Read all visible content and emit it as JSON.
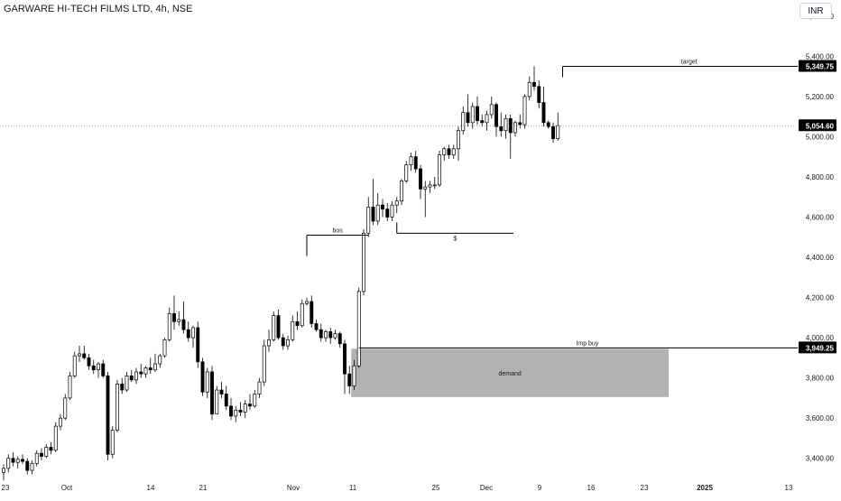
{
  "header": {
    "symbol_title": "GARWARE HI-TECH FILMS LTD, 4h, NSE",
    "currency": "INR"
  },
  "chart_data": {
    "type": "candlestick",
    "title": "GARWARE HI-TECH FILMS LTD, 4h, NSE",
    "currency": "INR",
    "y_axis": {
      "ticks": [
        3400,
        3600,
        3800,
        4000,
        4200,
        4400,
        4600,
        4800,
        5000,
        5200,
        5400,
        5600
      ],
      "tick_labels": [
        "3,400.00",
        "3,600.00",
        "3,800.00",
        "4,000.00",
        "4,200.00",
        "4,400.00",
        "4,600.00",
        "4,800.00",
        "5,000.00",
        "5,200.00",
        "5,400.00",
        "5,600.00"
      ],
      "range": [
        3300,
        5680
      ]
    },
    "x_axis": {
      "tick_labels": [
        "23",
        "Oct",
        "14",
        "21",
        "Nov",
        "11",
        "25",
        "Dec",
        "9",
        "16",
        "23",
        "2025",
        "13"
      ],
      "tick_bold": [
        false,
        false,
        false,
        false,
        false,
        false,
        false,
        false,
        false,
        false,
        false,
        true,
        false
      ]
    },
    "last_price": {
      "value": 5054.6,
      "label": "5,054.60"
    },
    "candles": [
      {
        "o": 3330,
        "h": 3370,
        "l": 3290,
        "c": 3350
      },
      {
        "o": 3350,
        "h": 3420,
        "l": 3330,
        "c": 3400
      },
      {
        "o": 3400,
        "h": 3430,
        "l": 3360,
        "c": 3380
      },
      {
        "o": 3380,
        "h": 3410,
        "l": 3350,
        "c": 3395
      },
      {
        "o": 3395,
        "h": 3420,
        "l": 3370,
        "c": 3385
      },
      {
        "o": 3385,
        "h": 3400,
        "l": 3320,
        "c": 3340
      },
      {
        "o": 3340,
        "h": 3390,
        "l": 3320,
        "c": 3375
      },
      {
        "o": 3375,
        "h": 3440,
        "l": 3360,
        "c": 3425
      },
      {
        "o": 3425,
        "h": 3450,
        "l": 3390,
        "c": 3410
      },
      {
        "o": 3410,
        "h": 3470,
        "l": 3400,
        "c": 3455
      },
      {
        "o": 3455,
        "h": 3480,
        "l": 3420,
        "c": 3440
      },
      {
        "o": 3440,
        "h": 3580,
        "l": 3430,
        "c": 3560
      },
      {
        "o": 3560,
        "h": 3620,
        "l": 3540,
        "c": 3600
      },
      {
        "o": 3600,
        "h": 3720,
        "l": 3590,
        "c": 3700
      },
      {
        "o": 3700,
        "h": 3830,
        "l": 3690,
        "c": 3810
      },
      {
        "o": 3810,
        "h": 3930,
        "l": 3800,
        "c": 3910
      },
      {
        "o": 3910,
        "h": 3960,
        "l": 3880,
        "c": 3920
      },
      {
        "o": 3920,
        "h": 3960,
        "l": 3890,
        "c": 3900
      },
      {
        "o": 3900,
        "h": 3920,
        "l": 3840,
        "c": 3860
      },
      {
        "o": 3860,
        "h": 3890,
        "l": 3820,
        "c": 3840
      },
      {
        "o": 3840,
        "h": 3880,
        "l": 3800,
        "c": 3870
      },
      {
        "o": 3870,
        "h": 3890,
        "l": 3800,
        "c": 3810
      },
      {
        "o": 3810,
        "h": 3830,
        "l": 3390,
        "c": 3420
      },
      {
        "o": 3420,
        "h": 3560,
        "l": 3400,
        "c": 3540
      },
      {
        "o": 3540,
        "h": 3790,
        "l": 3530,
        "c": 3770
      },
      {
        "o": 3770,
        "h": 3800,
        "l": 3720,
        "c": 3740
      },
      {
        "o": 3740,
        "h": 3830,
        "l": 3730,
        "c": 3810
      },
      {
        "o": 3810,
        "h": 3840,
        "l": 3780,
        "c": 3790
      },
      {
        "o": 3790,
        "h": 3850,
        "l": 3770,
        "c": 3830
      },
      {
        "o": 3830,
        "h": 3870,
        "l": 3800,
        "c": 3820
      },
      {
        "o": 3820,
        "h": 3860,
        "l": 3800,
        "c": 3850
      },
      {
        "o": 3850,
        "h": 3900,
        "l": 3820,
        "c": 3840
      },
      {
        "o": 3840,
        "h": 3920,
        "l": 3830,
        "c": 3870
      },
      {
        "o": 3870,
        "h": 3920,
        "l": 3850,
        "c": 3910
      },
      {
        "o": 3910,
        "h": 4000,
        "l": 3900,
        "c": 3990
      },
      {
        "o": 3990,
        "h": 4150,
        "l": 3980,
        "c": 4120
      },
      {
        "o": 4120,
        "h": 4210,
        "l": 4040,
        "c": 4080
      },
      {
        "o": 4080,
        "h": 4130,
        "l": 4060,
        "c": 4090
      },
      {
        "o": 4090,
        "h": 4180,
        "l": 4020,
        "c": 4040
      },
      {
        "o": 4040,
        "h": 4080,
        "l": 3980,
        "c": 4000
      },
      {
        "o": 4000,
        "h": 4060,
        "l": 3950,
        "c": 4050
      },
      {
        "o": 4050,
        "h": 4080,
        "l": 3850,
        "c": 3880
      },
      {
        "o": 3880,
        "h": 3900,
        "l": 3710,
        "c": 3730
      },
      {
        "o": 3730,
        "h": 3850,
        "l": 3700,
        "c": 3830
      },
      {
        "o": 3830,
        "h": 3860,
        "l": 3590,
        "c": 3620
      },
      {
        "o": 3620,
        "h": 3760,
        "l": 3620,
        "c": 3740
      },
      {
        "o": 3740,
        "h": 3780,
        "l": 3700,
        "c": 3720
      },
      {
        "o": 3720,
        "h": 3760,
        "l": 3640,
        "c": 3660
      },
      {
        "o": 3660,
        "h": 3700,
        "l": 3590,
        "c": 3610
      },
      {
        "o": 3610,
        "h": 3660,
        "l": 3580,
        "c": 3640
      },
      {
        "o": 3640,
        "h": 3680,
        "l": 3610,
        "c": 3630
      },
      {
        "o": 3630,
        "h": 3690,
        "l": 3600,
        "c": 3670
      },
      {
        "o": 3670,
        "h": 3720,
        "l": 3640,
        "c": 3660
      },
      {
        "o": 3660,
        "h": 3740,
        "l": 3650,
        "c": 3720
      },
      {
        "o": 3720,
        "h": 3800,
        "l": 3700,
        "c": 3780
      },
      {
        "o": 3780,
        "h": 3990,
        "l": 3760,
        "c": 3960
      },
      {
        "o": 3960,
        "h": 4040,
        "l": 3930,
        "c": 3990
      },
      {
        "o": 3990,
        "h": 4130,
        "l": 3980,
        "c": 4110
      },
      {
        "o": 4110,
        "h": 4140,
        "l": 3990,
        "c": 4000
      },
      {
        "o": 4000,
        "h": 4020,
        "l": 3940,
        "c": 3960
      },
      {
        "o": 3960,
        "h": 4010,
        "l": 3940,
        "c": 3990
      },
      {
        "o": 3990,
        "h": 4110,
        "l": 3980,
        "c": 4080
      },
      {
        "o": 4080,
        "h": 4130,
        "l": 4040,
        "c": 4060
      },
      {
        "o": 4060,
        "h": 4190,
        "l": 4050,
        "c": 4170
      },
      {
        "o": 4170,
        "h": 4200,
        "l": 4160,
        "c": 4180
      },
      {
        "o": 4180,
        "h": 4210,
        "l": 4050,
        "c": 4070
      },
      {
        "o": 4070,
        "h": 4090,
        "l": 4030,
        "c": 4040
      },
      {
        "o": 4040,
        "h": 4070,
        "l": 3980,
        "c": 4000
      },
      {
        "o": 4000,
        "h": 4040,
        "l": 3980,
        "c": 4030
      },
      {
        "o": 4030,
        "h": 4050,
        "l": 3970,
        "c": 4000
      },
      {
        "o": 4000,
        "h": 4040,
        "l": 3990,
        "c": 4020
      },
      {
        "o": 4020,
        "h": 4030,
        "l": 3950,
        "c": 3970
      },
      {
        "o": 3970,
        "h": 3990,
        "l": 3720,
        "c": 3820
      },
      {
        "o": 3820,
        "h": 3860,
        "l": 3720,
        "c": 3760
      },
      {
        "o": 3760,
        "h": 3890,
        "l": 3740,
        "c": 3860
      },
      {
        "o": 3860,
        "h": 4250,
        "l": 3850,
        "c": 4230
      },
      {
        "o": 4230,
        "h": 4540,
        "l": 4210,
        "c": 4520
      },
      {
        "o": 4520,
        "h": 4700,
        "l": 4500,
        "c": 4650
      },
      {
        "o": 4650,
        "h": 4790,
        "l": 4560,
        "c": 4580
      },
      {
        "o": 4580,
        "h": 4720,
        "l": 4560,
        "c": 4660
      },
      {
        "o": 4660,
        "h": 4690,
        "l": 4600,
        "c": 4640
      },
      {
        "o": 4640,
        "h": 4670,
        "l": 4580,
        "c": 4600
      },
      {
        "o": 4600,
        "h": 4680,
        "l": 4580,
        "c": 4660
      },
      {
        "o": 4660,
        "h": 4700,
        "l": 4620,
        "c": 4680
      },
      {
        "o": 4680,
        "h": 4790,
        "l": 4660,
        "c": 4780
      },
      {
        "o": 4780,
        "h": 4880,
        "l": 4770,
        "c": 4860
      },
      {
        "o": 4860,
        "h": 4920,
        "l": 4830,
        "c": 4900
      },
      {
        "o": 4900,
        "h": 4930,
        "l": 4820,
        "c": 4840
      },
      {
        "o": 4840,
        "h": 4860,
        "l": 4690,
        "c": 4740
      },
      {
        "o": 4740,
        "h": 4780,
        "l": 4600,
        "c": 4750
      },
      {
        "o": 4750,
        "h": 4780,
        "l": 4720,
        "c": 4760
      },
      {
        "o": 4760,
        "h": 4800,
        "l": 4740,
        "c": 4760
      },
      {
        "o": 4760,
        "h": 4930,
        "l": 4750,
        "c": 4910
      },
      {
        "o": 4910,
        "h": 4950,
        "l": 4880,
        "c": 4940
      },
      {
        "o": 4940,
        "h": 4960,
        "l": 4890,
        "c": 4910
      },
      {
        "o": 4910,
        "h": 4960,
        "l": 4890,
        "c": 4940
      },
      {
        "o": 4940,
        "h": 5050,
        "l": 4880,
        "c": 5030
      },
      {
        "o": 5030,
        "h": 5150,
        "l": 5010,
        "c": 5120
      },
      {
        "o": 5120,
        "h": 5210,
        "l": 5050,
        "c": 5070
      },
      {
        "o": 5070,
        "h": 5170,
        "l": 5040,
        "c": 5150
      },
      {
        "o": 5150,
        "h": 5200,
        "l": 5060,
        "c": 5080
      },
      {
        "o": 5080,
        "h": 5110,
        "l": 5050,
        "c": 5070
      },
      {
        "o": 5070,
        "h": 5130,
        "l": 5030,
        "c": 5110
      },
      {
        "o": 5110,
        "h": 5200,
        "l": 5090,
        "c": 5160
      },
      {
        "o": 5160,
        "h": 5170,
        "l": 5000,
        "c": 5050
      },
      {
        "o": 5050,
        "h": 5120,
        "l": 5000,
        "c": 5030
      },
      {
        "o": 5030,
        "h": 5110,
        "l": 4990,
        "c": 5090
      },
      {
        "o": 5090,
        "h": 5110,
        "l": 4890,
        "c": 5020
      },
      {
        "o": 5020,
        "h": 5080,
        "l": 5000,
        "c": 5070
      },
      {
        "o": 5070,
        "h": 5110,
        "l": 5040,
        "c": 5060
      },
      {
        "o": 5060,
        "h": 5210,
        "l": 5040,
        "c": 5200
      },
      {
        "o": 5200,
        "h": 5300,
        "l": 5180,
        "c": 5270
      },
      {
        "o": 5270,
        "h": 5350,
        "l": 5230,
        "c": 5250
      },
      {
        "o": 5250,
        "h": 5280,
        "l": 5140,
        "c": 5170
      },
      {
        "o": 5170,
        "h": 5250,
        "l": 5050,
        "c": 5070
      },
      {
        "o": 5070,
        "h": 5080,
        "l": 5040,
        "c": 5050
      },
      {
        "o": 5050,
        "h": 5070,
        "l": 4970,
        "c": 4990
      },
      {
        "o": 4990,
        "h": 5120,
        "l": 4980,
        "c": 5055
      }
    ],
    "annotations": [
      {
        "type": "horizontal-line",
        "label": "target",
        "price": 5349.75,
        "price_label": "5,349.75",
        "from_index": 118
      },
      {
        "type": "horizontal-line",
        "label": "Imp buy",
        "price": 3949.25,
        "price_label": "3,949.25",
        "from_index": 75
      },
      {
        "type": "zone",
        "label": "demand",
        "price_top": 3945,
        "price_bottom": 3705,
        "from_index": 73,
        "to_date_label": "23"
      },
      {
        "type": "segment",
        "label": "bos",
        "price": 4510,
        "from_index": 64,
        "to_index": 77
      },
      {
        "type": "segment",
        "label": "$",
        "price": 4520,
        "from_index": 83,
        "to_index": 104
      }
    ],
    "colors": {
      "up_candle": "#ffffff",
      "down_candle": "#000000",
      "outline": "#000000",
      "zone_fill": "#b2b2b2",
      "price_tag_bg": "#000000",
      "price_tag_text": "#ffffff",
      "last_price_line": "#787b86"
    },
    "grid": false,
    "legend": "none"
  }
}
